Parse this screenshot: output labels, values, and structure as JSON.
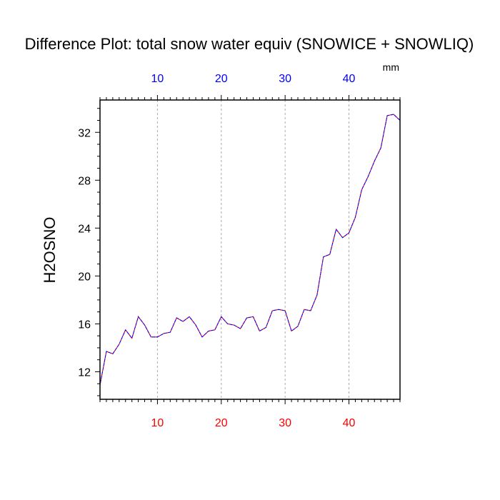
{
  "chart_data": {
    "type": "line",
    "title": "Difference Plot: total snow water equiv (SNOWICE + SNOWLIQ)",
    "units": "mm",
    "ylabel": "H2OSNO",
    "xlabel": "",
    "xlim": [
      1,
      48
    ],
    "ylim": [
      9.7,
      34.7
    ],
    "x_ticks": [
      10,
      20,
      30,
      40
    ],
    "y_ticks": [
      12,
      16,
      20,
      24,
      28,
      32
    ],
    "bottom_tick_color": "#ff0000",
    "top_tick_color": "#0000ff",
    "grid_x": true,
    "grid_y": false,
    "series": [
      {
        "color_a": "#ff0000",
        "color_b": "#0000ff",
        "x": [
          1,
          2,
          3,
          4,
          5,
          6,
          7,
          8,
          9,
          10,
          11,
          12,
          13,
          14,
          15,
          16,
          17,
          18,
          19,
          20,
          21,
          22,
          23,
          24,
          25,
          26,
          27,
          28,
          29,
          30,
          31,
          32,
          33,
          34,
          35,
          36,
          37,
          38,
          39,
          40,
          41,
          42,
          43,
          44,
          45,
          46,
          47,
          48
        ],
        "y": [
          10.9,
          13.7,
          13.5,
          14.3,
          15.5,
          14.8,
          16.6,
          15.9,
          14.9,
          14.9,
          15.2,
          15.3,
          16.5,
          16.2,
          16.6,
          15.9,
          14.9,
          15.4,
          15.5,
          16.6,
          16.0,
          15.9,
          15.6,
          16.5,
          16.6,
          15.4,
          15.7,
          17.1,
          17.2,
          17.1,
          15.4,
          15.8,
          17.2,
          17.1,
          18.4,
          21.6,
          21.8,
          23.9,
          23.2,
          23.6,
          24.9,
          27.2,
          28.3,
          29.6,
          30.7,
          33.4,
          33.5,
          33.0
        ]
      }
    ]
  }
}
